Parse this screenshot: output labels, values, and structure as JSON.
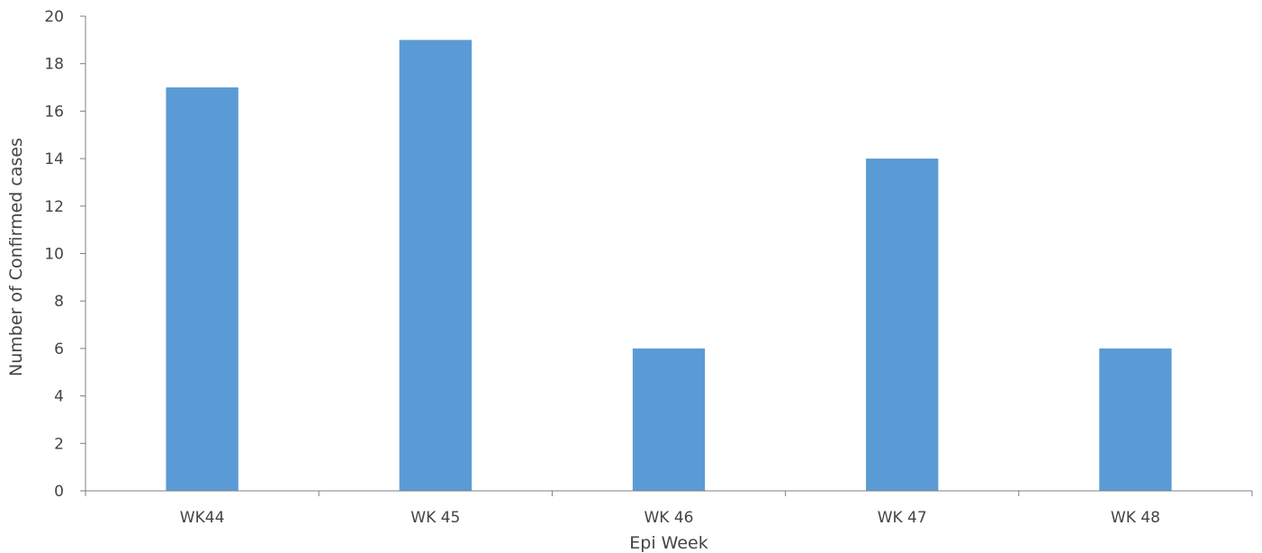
{
  "chart_data": {
    "type": "bar",
    "categories": [
      "WK44",
      "WK 45",
      "WK 46",
      "WK 47",
      "WK 48"
    ],
    "values": [
      17,
      19,
      6,
      14,
      6
    ],
    "title": "",
    "xlabel": "Epi Week",
    "ylabel": "Number of Confirmed cases",
    "ylim": [
      0,
      20
    ],
    "yticks": [
      0,
      2,
      4,
      6,
      8,
      10,
      12,
      14,
      16,
      18,
      20
    ],
    "grid": false,
    "bar_color": "#5b9bd5"
  }
}
